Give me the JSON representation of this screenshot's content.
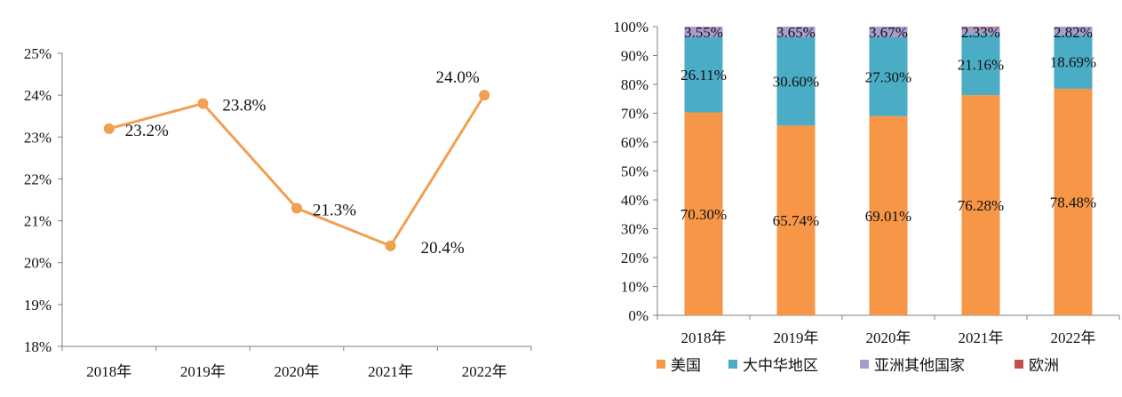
{
  "chart_data": [
    {
      "type": "line",
      "title": "",
      "xlabel": "",
      "ylabel": "",
      "categories": [
        "2018年",
        "2019年",
        "2020年",
        "2021年",
        "2022年"
      ],
      "values": [
        23.2,
        23.8,
        21.3,
        20.4,
        24.0
      ],
      "data_labels": [
        "23.2%",
        "23.8%",
        "21.3%",
        "20.4%",
        "24.0%"
      ],
      "ylim": [
        18,
        25
      ],
      "y_ticks": [
        "18%",
        "19%",
        "20%",
        "21%",
        "22%",
        "23%",
        "24%",
        "25%"
      ],
      "color": "#F0A050",
      "grid": false
    },
    {
      "type": "bar",
      "stacked": true,
      "title": "",
      "xlabel": "",
      "ylabel": "",
      "categories": [
        "2018年",
        "2019年",
        "2020年",
        "2021年",
        "2022年"
      ],
      "ylim": [
        0,
        100
      ],
      "y_ticks": [
        "0%",
        "10%",
        "20%",
        "30%",
        "40%",
        "50%",
        "60%",
        "70%",
        "80%",
        "90%",
        "100%"
      ],
      "series": [
        {
          "name": "美国",
          "values": [
            70.3,
            65.74,
            69.01,
            76.28,
            78.48
          ],
          "labels": [
            "70.30%",
            "65.74%",
            "69.01%",
            "76.28%",
            "78.48%"
          ],
          "color": "#F79646"
        },
        {
          "name": "大中华地区",
          "values": [
            26.11,
            30.6,
            27.3,
            21.16,
            18.69
          ],
          "labels": [
            "26.11%",
            "30.60%",
            "27.30%",
            "21.16%",
            "18.69%"
          ],
          "color": "#4BACC6"
        },
        {
          "name": "亚洲其他国家",
          "values": [
            3.55,
            3.65,
            3.67,
            2.33,
            2.82
          ],
          "labels": [
            "3.55%",
            "3.65%",
            "3.67%",
            "2.33%",
            "2.82%"
          ],
          "color": "#A99BCC"
        },
        {
          "name": "欧洲",
          "values": [
            0.04,
            0.01,
            0.02,
            0.23,
            0.01
          ],
          "labels": [],
          "color": "#C0504D"
        }
      ],
      "legend_position": "bottom",
      "grid": false
    }
  ]
}
